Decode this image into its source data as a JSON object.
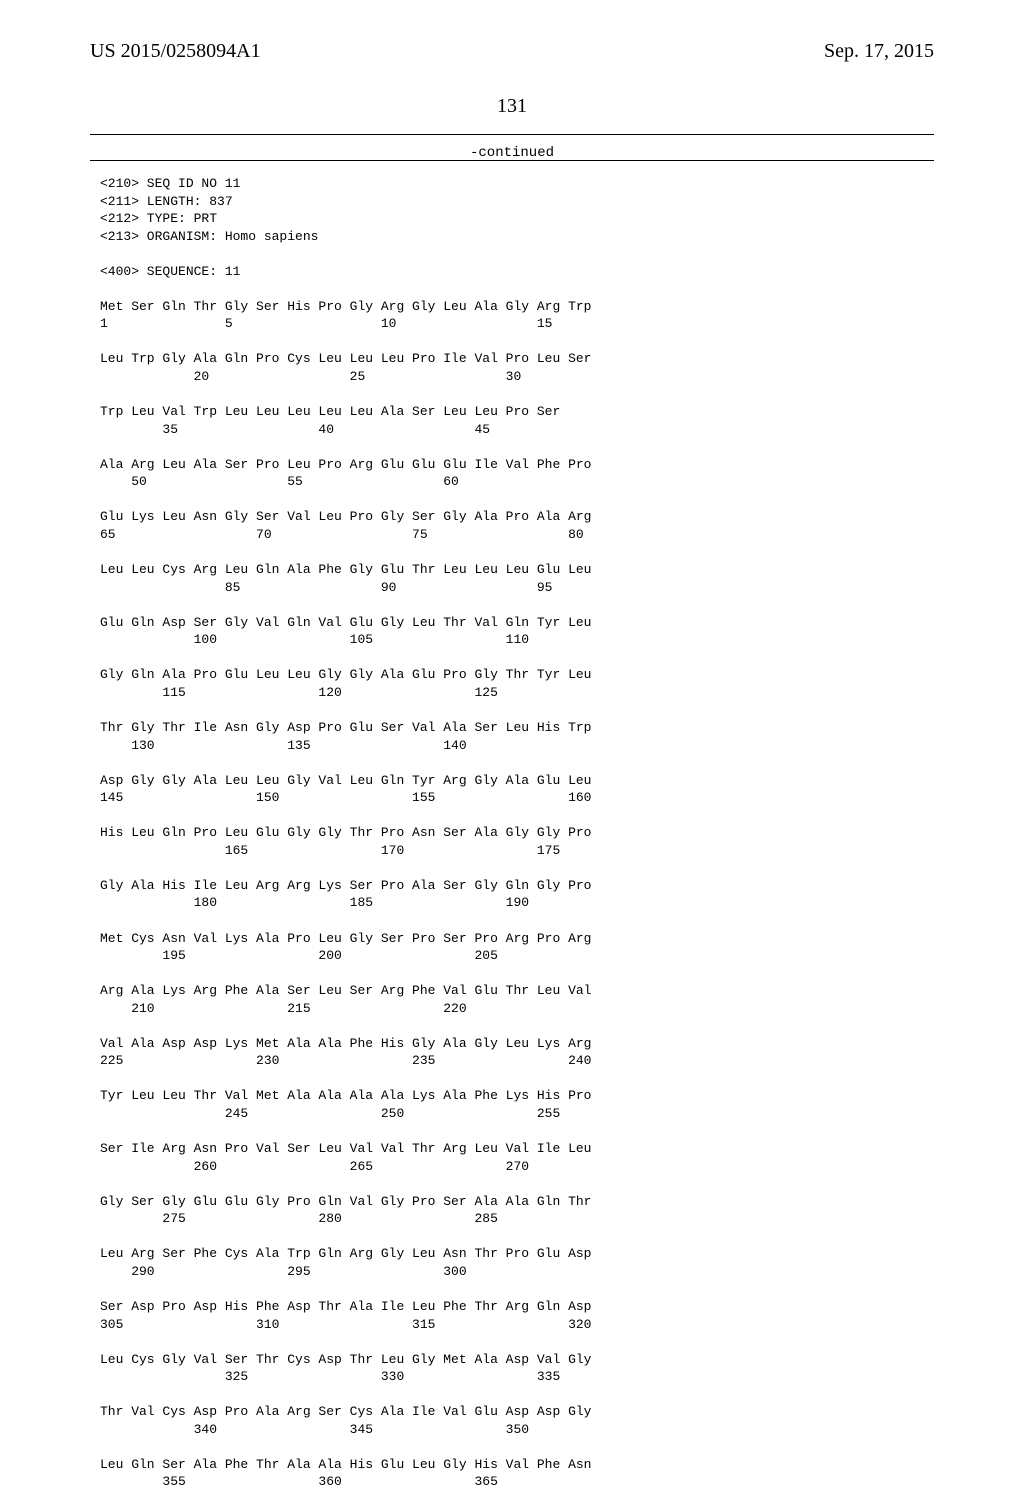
{
  "header": {
    "publication_number": "US 2015/0258094A1",
    "publication_date": "Sep. 17, 2015",
    "page_number": "131",
    "continued_label": "-continued"
  },
  "seq_header": {
    "seq_id": "<210> SEQ ID NO 11",
    "length": "<211> LENGTH: 837",
    "type": "<212> TYPE: PRT",
    "organism": "<213> ORGANISM: Homo sapiens",
    "sequence_label": "<400> SEQUENCE: 11"
  },
  "rows": [
    {
      "aa": "Met Ser Gln Thr Gly Ser His Pro Gly Arg Gly Leu Ala Gly Arg Trp",
      "nums": [
        "1",
        "",
        "",
        "",
        "5",
        "",
        "",
        "",
        "",
        "10",
        "",
        "",
        "",
        "",
        "15",
        ""
      ]
    },
    {
      "aa": "Leu Trp Gly Ala Gln Pro Cys Leu Leu Leu Pro Ile Val Pro Leu Ser",
      "nums": [
        "",
        "",
        "",
        "20",
        "",
        "",
        "",
        "",
        "25",
        "",
        "",
        "",
        "",
        "30",
        "",
        ""
      ]
    },
    {
      "aa": "Trp Leu Val Trp Leu Leu Leu Leu Leu Ala Ser Leu Leu Pro Ser",
      "nums": [
        "",
        "",
        "35",
        "",
        "",
        "",
        "",
        "40",
        "",
        "",
        "",
        "",
        "45",
        "",
        "",
        ""
      ]
    },
    {
      "aa": "Ala Arg Leu Ala Ser Pro Leu Pro Arg Glu Glu Glu Ile Val Phe Pro",
      "nums": [
        "",
        "50",
        "",
        "",
        "",
        "",
        "55",
        "",
        "",
        "",
        "",
        "60",
        "",
        "",
        "",
        ""
      ]
    },
    {
      "aa": "Glu Lys Leu Asn Gly Ser Val Leu Pro Gly Ser Gly Ala Pro Ala Arg",
      "nums": [
        "65",
        "",
        "",
        "",
        "",
        "70",
        "",
        "",
        "",
        "",
        "75",
        "",
        "",
        "",
        "",
        "80"
      ]
    },
    {
      "aa": "Leu Leu Cys Arg Leu Gln Ala Phe Gly Glu Thr Leu Leu Leu Glu Leu",
      "nums": [
        "",
        "",
        "",
        "",
        "85",
        "",
        "",
        "",
        "",
        "90",
        "",
        "",
        "",
        "",
        "95",
        ""
      ]
    },
    {
      "aa": "Glu Gln Asp Ser Gly Val Gln Val Glu Gly Leu Thr Val Gln Tyr Leu",
      "nums": [
        "",
        "",
        "",
        "100",
        "",
        "",
        "",
        "",
        "105",
        "",
        "",
        "",
        "",
        "110",
        "",
        ""
      ]
    },
    {
      "aa": "Gly Gln Ala Pro Glu Leu Leu Gly Gly Ala Glu Pro Gly Thr Tyr Leu",
      "nums": [
        "",
        "",
        "115",
        "",
        "",
        "",
        "",
        "120",
        "",
        "",
        "",
        "",
        "125",
        "",
        "",
        ""
      ]
    },
    {
      "aa": "Thr Gly Thr Ile Asn Gly Asp Pro Glu Ser Val Ala Ser Leu His Trp",
      "nums": [
        "",
        "130",
        "",
        "",
        "",
        "",
        "135",
        "",
        "",
        "",
        "",
        "140",
        "",
        "",
        "",
        ""
      ]
    },
    {
      "aa": "Asp Gly Gly Ala Leu Leu Gly Val Leu Gln Tyr Arg Gly Ala Glu Leu",
      "nums": [
        "145",
        "",
        "",
        "",
        "",
        "150",
        "",
        "",
        "",
        "",
        "155",
        "",
        "",
        "",
        "",
        "160"
      ]
    },
    {
      "aa": "His Leu Gln Pro Leu Glu Gly Gly Thr Pro Asn Ser Ala Gly Gly Pro",
      "nums": [
        "",
        "",
        "",
        "",
        "165",
        "",
        "",
        "",
        "",
        "170",
        "",
        "",
        "",
        "",
        "175",
        ""
      ]
    },
    {
      "aa": "Gly Ala His Ile Leu Arg Arg Lys Ser Pro Ala Ser Gly Gln Gly Pro",
      "nums": [
        "",
        "",
        "",
        "180",
        "",
        "",
        "",
        "",
        "185",
        "",
        "",
        "",
        "",
        "190",
        "",
        ""
      ]
    },
    {
      "aa": "Met Cys Asn Val Lys Ala Pro Leu Gly Ser Pro Ser Pro Arg Pro Arg",
      "nums": [
        "",
        "",
        "195",
        "",
        "",
        "",
        "",
        "200",
        "",
        "",
        "",
        "",
        "205",
        "",
        "",
        ""
      ]
    },
    {
      "aa": "Arg Ala Lys Arg Phe Ala Ser Leu Ser Arg Phe Val Glu Thr Leu Val",
      "nums": [
        "",
        "210",
        "",
        "",
        "",
        "",
        "215",
        "",
        "",
        "",
        "",
        "220",
        "",
        "",
        "",
        ""
      ]
    },
    {
      "aa": "Val Ala Asp Asp Lys Met Ala Ala Phe His Gly Ala Gly Leu Lys Arg",
      "nums": [
        "225",
        "",
        "",
        "",
        "",
        "230",
        "",
        "",
        "",
        "",
        "235",
        "",
        "",
        "",
        "",
        "240"
      ]
    },
    {
      "aa": "Tyr Leu Leu Thr Val Met Ala Ala Ala Ala Lys Ala Phe Lys His Pro",
      "nums": [
        "",
        "",
        "",
        "",
        "245",
        "",
        "",
        "",
        "",
        "250",
        "",
        "",
        "",
        "",
        "255",
        ""
      ]
    },
    {
      "aa": "Ser Ile Arg Asn Pro Val Ser Leu Val Val Thr Arg Leu Val Ile Leu",
      "nums": [
        "",
        "",
        "",
        "260",
        "",
        "",
        "",
        "",
        "265",
        "",
        "",
        "",
        "",
        "270",
        "",
        ""
      ]
    },
    {
      "aa": "Gly Ser Gly Glu Glu Gly Pro Gln Val Gly Pro Ser Ala Ala Gln Thr",
      "nums": [
        "",
        "",
        "275",
        "",
        "",
        "",
        "",
        "280",
        "",
        "",
        "",
        "",
        "285",
        "",
        "",
        ""
      ]
    },
    {
      "aa": "Leu Arg Ser Phe Cys Ala Trp Gln Arg Gly Leu Asn Thr Pro Glu Asp",
      "nums": [
        "",
        "290",
        "",
        "",
        "",
        "",
        "295",
        "",
        "",
        "",
        "",
        "300",
        "",
        "",
        "",
        ""
      ]
    },
    {
      "aa": "Ser Asp Pro Asp His Phe Asp Thr Ala Ile Leu Phe Thr Arg Gln Asp",
      "nums": [
        "305",
        "",
        "",
        "",
        "",
        "310",
        "",
        "",
        "",
        "",
        "315",
        "",
        "",
        "",
        "",
        "320"
      ]
    },
    {
      "aa": "Leu Cys Gly Val Ser Thr Cys Asp Thr Leu Gly Met Ala Asp Val Gly",
      "nums": [
        "",
        "",
        "",
        "",
        "325",
        "",
        "",
        "",
        "",
        "330",
        "",
        "",
        "",
        "",
        "335",
        ""
      ]
    },
    {
      "aa": "Thr Val Cys Asp Pro Ala Arg Ser Cys Ala Ile Val Glu Asp Asp Gly",
      "nums": [
        "",
        "",
        "",
        "340",
        "",
        "",
        "",
        "",
        "345",
        "",
        "",
        "",
        "",
        "350",
        "",
        ""
      ]
    },
    {
      "aa": "Leu Gln Ser Ala Phe Thr Ala Ala His Glu Leu Gly His Val Phe Asn",
      "nums": [
        "",
        "",
        "355",
        "",
        "",
        "",
        "",
        "360",
        "",
        "",
        "",
        "",
        "365",
        "",
        "",
        ""
      ]
    }
  ],
  "style": {
    "cell_w_ch": 4,
    "font_color": "#000000",
    "background": "#ffffff"
  }
}
